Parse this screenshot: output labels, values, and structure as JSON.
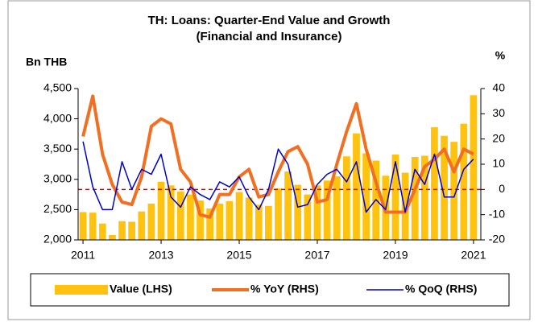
{
  "chart_data": {
    "type": "bar_line",
    "title": "TH: Loans: Quarter-End Value and Growth",
    "subtitle": "(Financial and Insurance)",
    "ylabel": "Bn THB",
    "y2label": "%",
    "categories": [
      "2011",
      null,
      null,
      null,
      null,
      null,
      null,
      null,
      "2013",
      null,
      null,
      null,
      null,
      null,
      null,
      null,
      "2015",
      null,
      null,
      null,
      null,
      null,
      null,
      null,
      "2017",
      null,
      null,
      null,
      null,
      null,
      null,
      null,
      "2019",
      null,
      null,
      null,
      null,
      null,
      null,
      null,
      "2021"
    ],
    "series": [
      {
        "name": "Value (LHS)",
        "kind": "bar",
        "axis": "y",
        "color": "#FFC20E",
        "values": [
          2460,
          2450,
          2270,
          2080,
          2310,
          2300,
          2470,
          2600,
          2960,
          2900,
          2800,
          2750,
          2650,
          2520,
          2600,
          2640,
          2790,
          2700,
          2580,
          2560,
          2850,
          3130,
          2910,
          2750,
          2900,
          2980,
          3050,
          3380,
          3760,
          3430,
          3310,
          3060,
          3410,
          3110,
          3370,
          3390,
          3860,
          3720,
          3620,
          3920,
          4390
        ]
      },
      {
        "name": "% YoY (RHS)",
        "kind": "line",
        "axis": "y2",
        "color": "#F26F21",
        "values": [
          21,
          37,
          14,
          2,
          -5,
          -6,
          5,
          25,
          28,
          26,
          8,
          3,
          -10,
          -11,
          -2,
          -2,
          5,
          8,
          -3,
          -2,
          7,
          15,
          17,
          10,
          -5,
          -4,
          10,
          23,
          34,
          16,
          3,
          -9,
          -9,
          -9,
          0,
          9,
          12,
          16,
          7,
          16,
          14
        ]
      },
      {
        "name": "% QoQ (RHS)",
        "kind": "line",
        "axis": "y2",
        "color": "#0000CC",
        "values": [
          19,
          1,
          -8,
          -8,
          11,
          0,
          8,
          6,
          14,
          -3,
          -7,
          1,
          -2,
          -4,
          3,
          1,
          5,
          -3,
          -8,
          0,
          16,
          10,
          -7,
          -6,
          2,
          6,
          8,
          3,
          11,
          -9,
          -4,
          -8,
          11,
          -9,
          8,
          2,
          14,
          -3,
          -3,
          8,
          12
        ]
      }
    ],
    "ylim": [
      2000,
      4500
    ],
    "yticks": [
      {
        "value": 2000,
        "label": "2,000"
      },
      {
        "value": 2500,
        "label": "2,500"
      },
      {
        "value": 3000,
        "label": "3,000"
      },
      {
        "value": 3500,
        "label": "3,500"
      },
      {
        "value": 4000,
        "label": "4,000"
      },
      {
        "value": 4500,
        "label": "4,500"
      }
    ],
    "y2lim": [
      -20,
      40
    ],
    "y2ticks": [
      -20,
      -10,
      0,
      10,
      20,
      30,
      40
    ],
    "reference_line": {
      "value": 0,
      "axis": "y2",
      "color": "#E00000"
    },
    "legend": "bottom"
  }
}
